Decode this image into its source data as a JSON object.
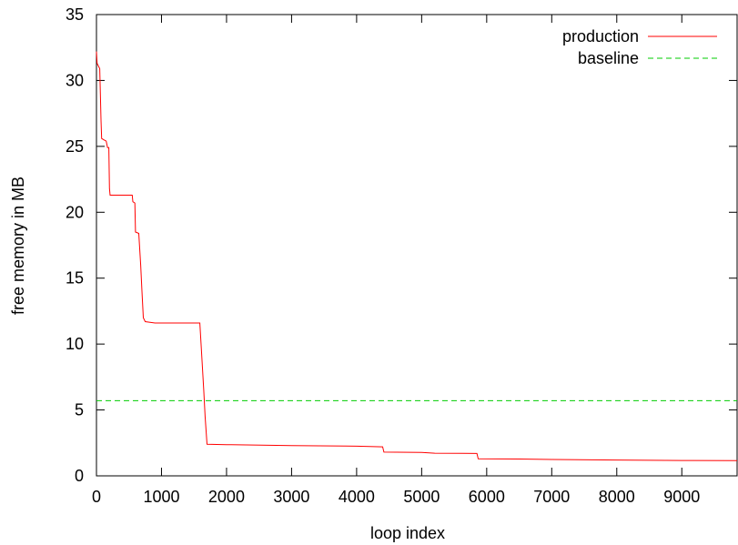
{
  "chart_data": {
    "type": "line",
    "title": "",
    "xlabel": "loop index",
    "ylabel": "free memory in MB",
    "xlim": [
      0,
      9850
    ],
    "ylim": [
      0,
      35
    ],
    "x_ticks": [
      0,
      1000,
      2000,
      3000,
      4000,
      5000,
      6000,
      7000,
      8000,
      9000
    ],
    "y_ticks": [
      0,
      5,
      10,
      15,
      20,
      25,
      30,
      35
    ],
    "grid": false,
    "legend_position": "top-right",
    "series": [
      {
        "name": "production",
        "color": "#ff0000",
        "style": "solid",
        "points": [
          [
            0,
            32.2
          ],
          [
            10,
            31.3
          ],
          [
            30,
            31.1
          ],
          [
            50,
            30.9
          ],
          [
            60,
            29.0
          ],
          [
            70,
            27.0
          ],
          [
            80,
            25.6
          ],
          [
            110,
            25.5
          ],
          [
            150,
            25.4
          ],
          [
            170,
            24.9
          ],
          [
            190,
            24.9
          ],
          [
            200,
            21.8
          ],
          [
            210,
            21.3
          ],
          [
            350,
            21.3
          ],
          [
            550,
            21.3
          ],
          [
            560,
            20.8
          ],
          [
            590,
            20.7
          ],
          [
            600,
            18.5
          ],
          [
            650,
            18.4
          ],
          [
            680,
            16.0
          ],
          [
            700,
            14.0
          ],
          [
            720,
            12.0
          ],
          [
            750,
            11.7
          ],
          [
            900,
            11.6
          ],
          [
            1200,
            11.6
          ],
          [
            1590,
            11.6
          ],
          [
            1620,
            9.0
          ],
          [
            1650,
            6.5
          ],
          [
            1670,
            4.5
          ],
          [
            1700,
            2.4
          ],
          [
            2000,
            2.37
          ],
          [
            3000,
            2.3
          ],
          [
            4000,
            2.25
          ],
          [
            4400,
            2.2
          ],
          [
            4420,
            1.8
          ],
          [
            5000,
            1.78
          ],
          [
            5200,
            1.72
          ],
          [
            5850,
            1.7
          ],
          [
            5870,
            1.3
          ],
          [
            6500,
            1.28
          ],
          [
            7000,
            1.24
          ],
          [
            8000,
            1.2
          ],
          [
            9000,
            1.17
          ],
          [
            9850,
            1.15
          ]
        ]
      },
      {
        "name": "baseline",
        "color": "#00cc00",
        "style": "dashed",
        "points": [
          [
            0,
            5.7
          ],
          [
            9850,
            5.7
          ]
        ]
      }
    ]
  }
}
